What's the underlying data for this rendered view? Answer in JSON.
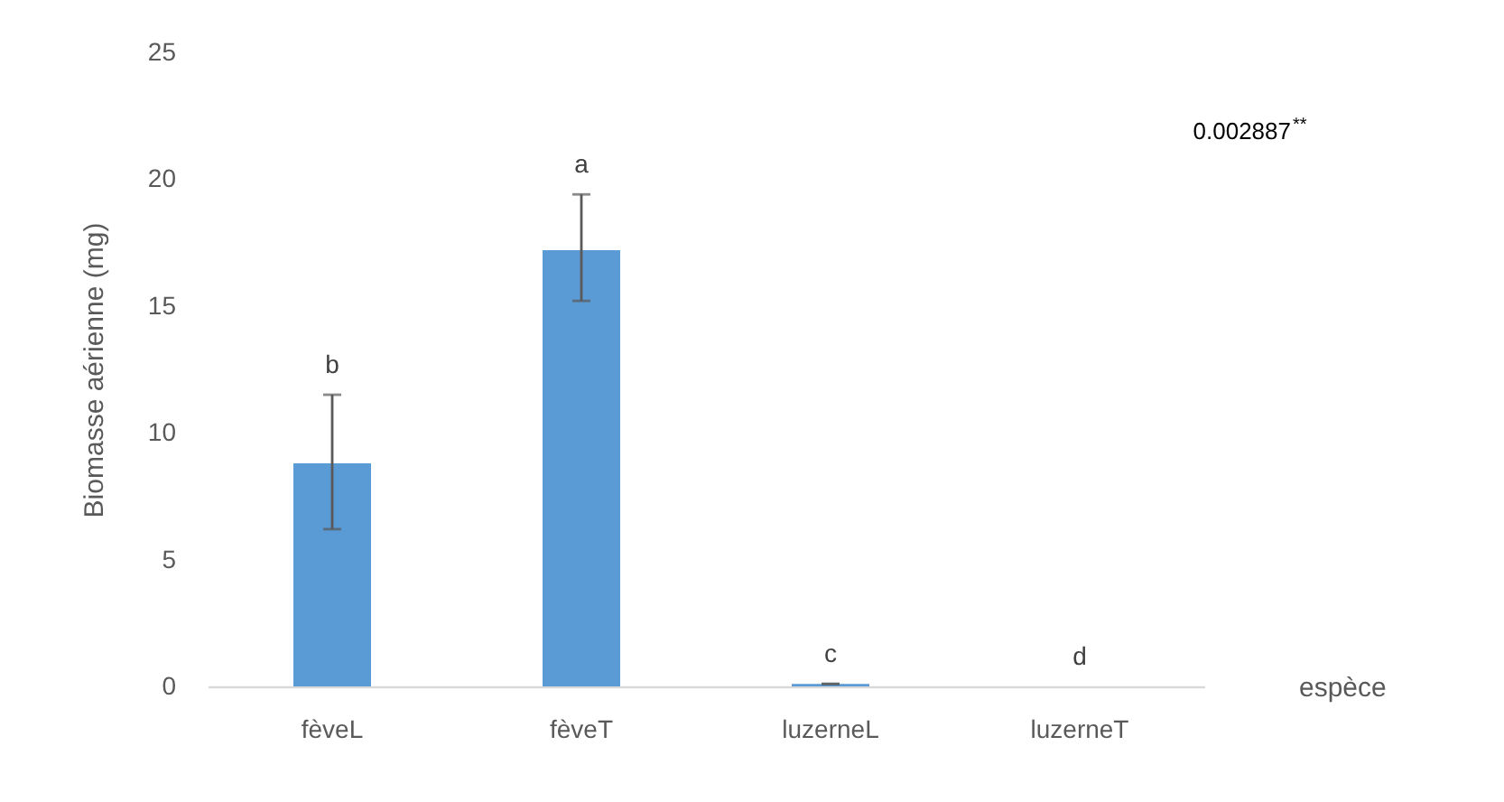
{
  "chart_data": {
    "type": "bar",
    "ylabel": "Biomasse aérienne (mg)",
    "xlabel": "espèce",
    "categories": [
      "fèveL",
      "fèveT",
      "luzerneL",
      "luzerneT"
    ],
    "values": [
      8.8,
      17.2,
      0.1,
      0
    ],
    "errors": [
      [
        6.2,
        11.5
      ],
      [
        15.2,
        19.4
      ],
      0,
      null
    ],
    "color": "#5b9bd5",
    "ylim": [
      0,
      25
    ],
    "yticks": [
      0,
      5,
      10,
      15,
      20,
      25
    ],
    "grid": false,
    "annotations": [
      {
        "text": "b",
        "x": "fèveL",
        "y": 11.5
      },
      {
        "text": "a",
        "x": "fèveT",
        "y": 19.4
      },
      {
        "text": "c",
        "x": "luzerneL",
        "y": 0.1
      },
      {
        "text": "d",
        "x": "luzerneT",
        "y": 0
      },
      "0.002887$^{**}$"
    ]
  }
}
